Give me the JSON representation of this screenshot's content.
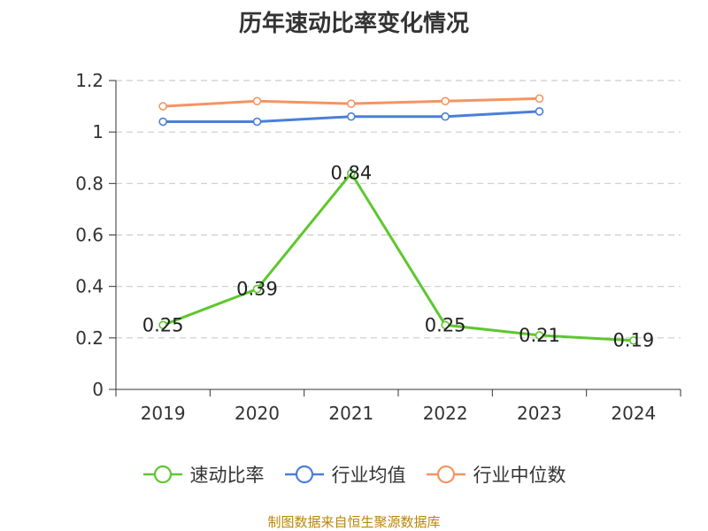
{
  "chart_data": {
    "type": "line",
    "title": "历年速动比率变化情况",
    "categories": [
      "2019",
      "2020",
      "2021",
      "2022",
      "2023",
      "2024"
    ],
    "y_ticks": [
      "0",
      "0.2",
      "0.4",
      "0.6",
      "0.8",
      "1",
      "1.2"
    ],
    "ylim": [
      0,
      1.2
    ],
    "grid": true,
    "legend_position": "bottom",
    "series": [
      {
        "name": "速动比率",
        "color": "#5ec72e",
        "values": [
          0.25,
          0.39,
          0.84,
          0.25,
          0.21,
          0.19
        ],
        "labels": [
          "0.25",
          "0.39",
          "0.84",
          "0.25",
          "0.21",
          "0.19"
        ]
      },
      {
        "name": "行业均值",
        "color": "#4a7fd8",
        "values": [
          1.04,
          1.04,
          1.06,
          1.06,
          1.08,
          null
        ]
      },
      {
        "name": "行业中位数",
        "color": "#f59461",
        "values": [
          1.1,
          1.12,
          1.11,
          1.12,
          1.13,
          null
        ]
      }
    ]
  },
  "source": "制图数据来自恒生聚源数据库"
}
